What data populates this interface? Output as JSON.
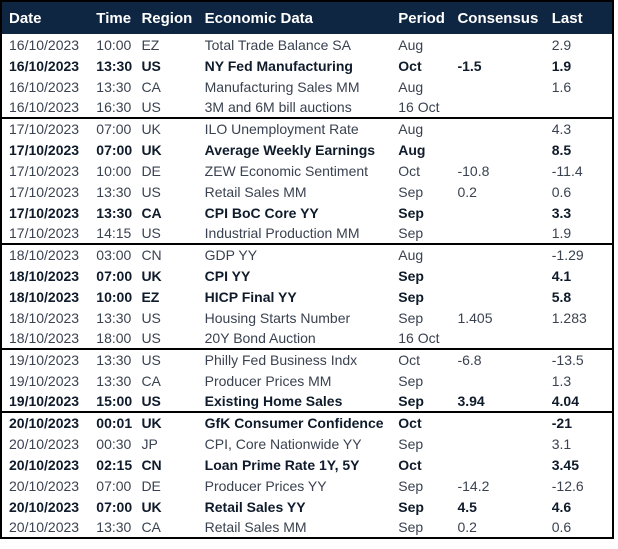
{
  "table": {
    "columns": [
      "Date",
      "Time",
      "Region",
      "Economic Data",
      "Period",
      "Consensus",
      "Last"
    ],
    "rows": [
      {
        "date": "16/10/2023",
        "time": "10:00",
        "region": "EZ",
        "event": "Total Trade Balance SA",
        "period": "Aug",
        "consensus": "",
        "last": "2.9",
        "bold": false,
        "group_start": false
      },
      {
        "date": "16/10/2023",
        "time": "13:30",
        "region": "US",
        "event": "NY Fed Manufacturing",
        "period": "Oct",
        "consensus": "-1.5",
        "last": "1.9",
        "bold": true,
        "group_start": false
      },
      {
        "date": "16/10/2023",
        "time": "13:30",
        "region": "CA",
        "event": "Manufacturing Sales MM",
        "period": "Aug",
        "consensus": "",
        "last": "1.6",
        "bold": false,
        "group_start": false
      },
      {
        "date": "16/10/2023",
        "time": "16:30",
        "region": "US",
        "event": "3M and 6M bill auctions",
        "period": "16 Oct",
        "consensus": "",
        "last": "",
        "bold": false,
        "group_start": false
      },
      {
        "date": "17/10/2023",
        "time": "07:00",
        "region": "UK",
        "event": "ILO Unemployment Rate",
        "period": "Aug",
        "consensus": "",
        "last": "4.3",
        "bold": false,
        "group_start": true
      },
      {
        "date": "17/10/2023",
        "time": "07:00",
        "region": "UK",
        "event": "Average Weekly Earnings",
        "period": "Aug",
        "consensus": "",
        "last": "8.5",
        "bold": true,
        "group_start": false
      },
      {
        "date": "17/10/2023",
        "time": "10:00",
        "region": "DE",
        "event": "ZEW Economic Sentiment",
        "period": "Oct",
        "consensus": "-10.8",
        "last": "-11.4",
        "bold": false,
        "group_start": false
      },
      {
        "date": "17/10/2023",
        "time": "13:30",
        "region": "US",
        "event": "Retail Sales MM",
        "period": "Sep",
        "consensus": "0.2",
        "last": "0.6",
        "bold": false,
        "group_start": false
      },
      {
        "date": "17/10/2023",
        "time": "13:30",
        "region": "CA",
        "event": "CPI BoC Core YY",
        "period": "Sep",
        "consensus": "",
        "last": "3.3",
        "bold": true,
        "group_start": false
      },
      {
        "date": "17/10/2023",
        "time": "14:15",
        "region": "US",
        "event": "Industrial Production MM",
        "period": "Sep",
        "consensus": "",
        "last": "1.9",
        "bold": false,
        "group_start": false
      },
      {
        "date": "18/10/2023",
        "time": "03:00",
        "region": "CN",
        "event": "GDP YY",
        "period": "Aug",
        "consensus": "",
        "last": "-1.29",
        "bold": false,
        "group_start": true
      },
      {
        "date": "18/10/2023",
        "time": "07:00",
        "region": "UK",
        "event": "CPI YY",
        "period": "Sep",
        "consensus": "",
        "last": "4.1",
        "bold": true,
        "group_start": false
      },
      {
        "date": "18/10/2023",
        "time": "10:00",
        "region": "EZ",
        "event": "HICP Final YY",
        "period": "Sep",
        "consensus": "",
        "last": "5.8",
        "bold": true,
        "group_start": false
      },
      {
        "date": "18/10/2023",
        "time": "13:30",
        "region": "US",
        "event": "Housing Starts Number",
        "period": "Sep",
        "consensus": "1.405",
        "last": "1.283",
        "bold": false,
        "group_start": false
      },
      {
        "date": "18/10/2023",
        "time": "18:00",
        "region": "US",
        "event": "20Y Bond Auction",
        "period": "16 Oct",
        "consensus": "",
        "last": "",
        "bold": false,
        "group_start": false
      },
      {
        "date": "19/10/2023",
        "time": "13:30",
        "region": "US",
        "event": "Philly Fed Business Indx",
        "period": "Oct",
        "consensus": "-6.8",
        "last": "-13.5",
        "bold": false,
        "group_start": true
      },
      {
        "date": "19/10/2023",
        "time": "13:30",
        "region": "CA",
        "event": "Producer Prices MM",
        "period": "Sep",
        "consensus": "",
        "last": "1.3",
        "bold": false,
        "group_start": false
      },
      {
        "date": "19/10/2023",
        "time": "15:00",
        "region": "US",
        "event": "Existing Home Sales",
        "period": "Sep",
        "consensus": "3.94",
        "last": "4.04",
        "bold": true,
        "group_start": false
      },
      {
        "date": "20/10/2023",
        "time": "00:01",
        "region": "UK",
        "event": "GfK Consumer Confidence",
        "period": "Oct",
        "consensus": "",
        "last": "-21",
        "bold": true,
        "group_start": true
      },
      {
        "date": "20/10/2023",
        "time": "00:30",
        "region": "JP",
        "event": "CPI, Core Nationwide YY",
        "period": "Sep",
        "consensus": "",
        "last": "3.1",
        "bold": false,
        "group_start": false
      },
      {
        "date": "20/10/2023",
        "time": "02:15",
        "region": "CN",
        "event": "Loan Prime Rate 1Y, 5Y",
        "period": "Oct",
        "consensus": "",
        "last": "3.45",
        "bold": true,
        "group_start": false
      },
      {
        "date": "20/10/2023",
        "time": "07:00",
        "region": "DE",
        "event": "Producer Prices YY",
        "period": "Sep",
        "consensus": "-14.2",
        "last": "-12.6",
        "bold": false,
        "group_start": false
      },
      {
        "date": "20/10/2023",
        "time": "07:00",
        "region": "UK",
        "event": "Retail Sales YY",
        "period": "Sep",
        "consensus": "4.5",
        "last": "4.6",
        "bold": true,
        "group_start": false
      },
      {
        "date": "20/10/2023",
        "time": "13:30",
        "region": "CA",
        "event": "Retail Sales MM",
        "period": "Sep",
        "consensus": "0.2",
        "last": "0.6",
        "bold": false,
        "group_start": false
      }
    ]
  },
  "colors": {
    "header_background": "#0e2642",
    "header_text": "#ffffff",
    "row_text": "#3a4250",
    "row_text_bold": "#0f1b2b",
    "border": "#000000"
  }
}
